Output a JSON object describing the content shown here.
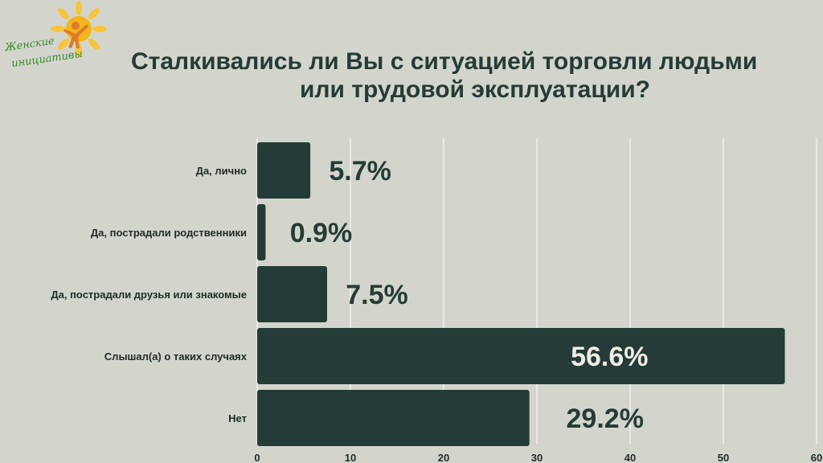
{
  "logo": {
    "line1": "Женские",
    "line2": "инициативы",
    "colors": {
      "sun": "#f2b51b",
      "figure": "#e07a2e",
      "text": "#3a8a2a"
    }
  },
  "chart_data": {
    "type": "bar",
    "orientation": "horizontal",
    "title": "Сталкивались ли Вы с ситуацией торговли людьми или трудовой эксплуатации?",
    "title_lines": [
      "Сталкивались ли Вы с ситуацией торговли людьми",
      "или трудовой эксплуатации?"
    ],
    "categories": [
      "Да, лично",
      "Да, пострадали родственники",
      "Да, пострадали друзья или знакомые",
      "Слышал(а) о таких случаях",
      "Нет"
    ],
    "values": [
      5.7,
      0.9,
      7.5,
      56.6,
      29.2
    ],
    "value_labels": [
      "5.7%",
      "0.9%",
      "7.5%",
      "56.6%",
      "29.2%"
    ],
    "xlim": [
      0,
      60
    ],
    "xticks": [
      0,
      10,
      20,
      30,
      40,
      50,
      60
    ],
    "grid": true,
    "colors": {
      "bar": "#253b37",
      "label_outside": "#253b37",
      "label_inside": "#f0ede4",
      "grid": "#ffffff",
      "background": "#d3d5cd"
    }
  }
}
